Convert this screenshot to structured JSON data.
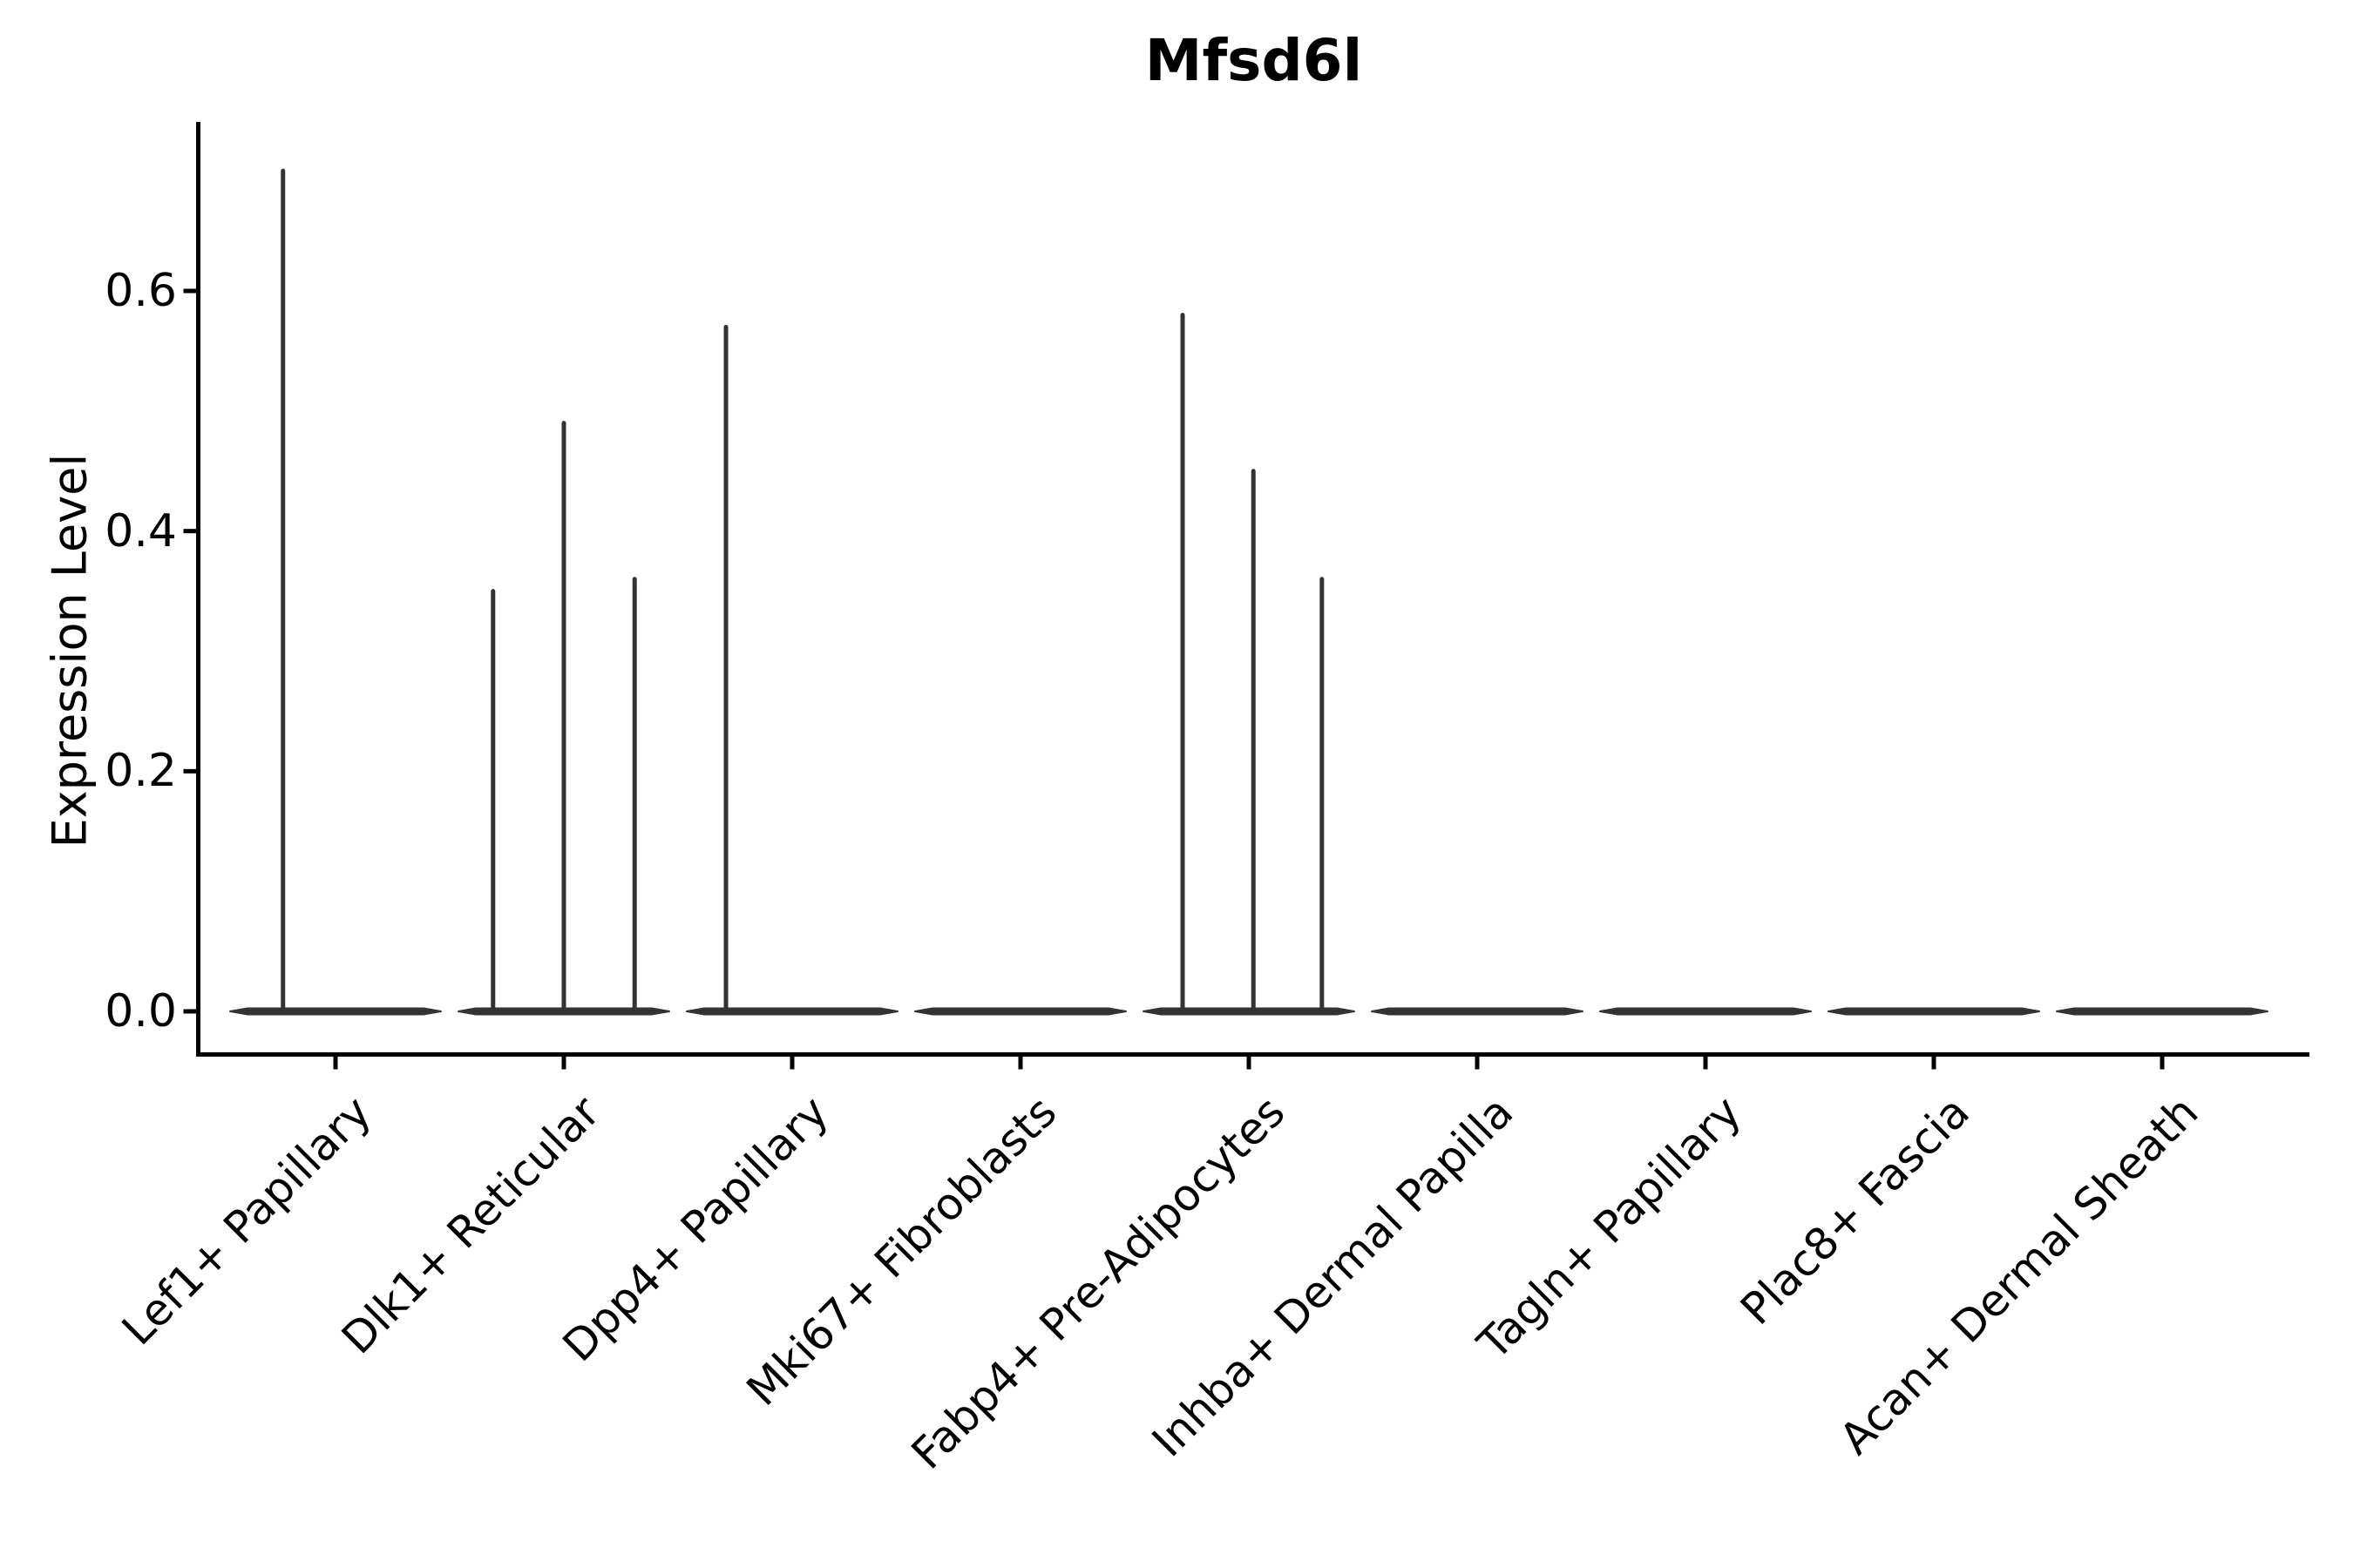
{
  "title": "Mfsd6l",
  "chart_data": {
    "type": "violin",
    "title": "Mfsd6l",
    "ylabel": "Expression Level",
    "xlabel": "",
    "yticks": [
      "0.0",
      "0.2",
      "0.4",
      "0.6"
    ],
    "ytick_values": [
      0.0,
      0.2,
      0.4,
      0.6
    ],
    "ylim": [
      -0.036,
      0.74
    ],
    "grid": false,
    "legend": "none",
    "categories": [
      "Lef1+ Papillary",
      "Dlk1+ Reticular",
      "Dpp4+ Papillary",
      "Mki67+ Fibroblasts",
      "Fabp4+ Pre-Adipocytes",
      "Inhba+ Dermal Papilla",
      "Tagln+ Papillary",
      "Plac8+ Fascia",
      "Acan+ Dermal Sheath"
    ],
    "violin_width": 0.92,
    "series": [
      {
        "category": "Lef1+ Papillary",
        "baseline": 0.0,
        "spikes": [
          {
            "offset": -0.23,
            "value": 0.7
          }
        ]
      },
      {
        "category": "Dlk1+ Reticular",
        "baseline": 0.0,
        "spikes": [
          {
            "offset": -0.31,
            "value": 0.35
          },
          {
            "offset": 0.0,
            "value": 0.49
          },
          {
            "offset": 0.31,
            "value": 0.36
          }
        ]
      },
      {
        "category": "Dpp4+ Papillary",
        "baseline": 0.0,
        "spikes": [
          {
            "offset": -0.29,
            "value": 0.57
          }
        ]
      },
      {
        "category": "Mki67+ Fibroblasts",
        "baseline": 0.0,
        "spikes": []
      },
      {
        "category": "Fabp4+ Pre-Adipocytes",
        "baseline": 0.0,
        "spikes": [
          {
            "offset": -0.29,
            "value": 0.58
          },
          {
            "offset": 0.02,
            "value": 0.45
          },
          {
            "offset": 0.32,
            "value": 0.36
          }
        ]
      },
      {
        "category": "Inhba+ Dermal Papilla",
        "baseline": 0.0,
        "spikes": []
      },
      {
        "category": "Tagln+ Papillary",
        "baseline": 0.0,
        "spikes": []
      },
      {
        "category": "Plac8+ Fascia",
        "baseline": 0.0,
        "spikes": []
      },
      {
        "category": "Acan+ Dermal Sheath",
        "baseline": 0.0,
        "spikes": []
      }
    ],
    "colors": {
      "violin": "#333333",
      "axis": "#000000",
      "text": "#000000",
      "background": "#ffffff"
    }
  }
}
